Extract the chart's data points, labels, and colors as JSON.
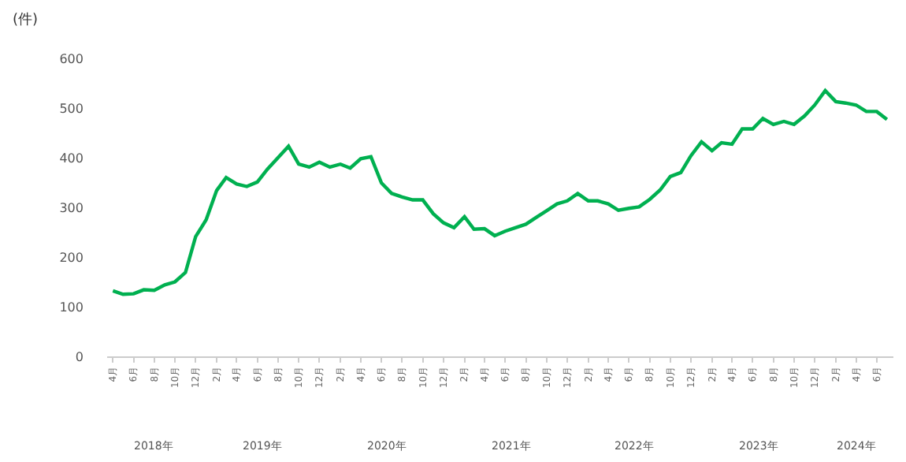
{
  "chart_data": {
    "type": "line",
    "ylabel": "(件)",
    "x": [
      "2018-04",
      "2018-05",
      "2018-06",
      "2018-07",
      "2018-08",
      "2018-09",
      "2018-10",
      "2018-11",
      "2018-12",
      "2019-01",
      "2019-02",
      "2019-03",
      "2019-04",
      "2019-05",
      "2019-06",
      "2019-07",
      "2019-08",
      "2019-09",
      "2019-10",
      "2019-11",
      "2019-12",
      "2020-01",
      "2020-02",
      "2020-03",
      "2020-04",
      "2020-05",
      "2020-06",
      "2020-07",
      "2020-08",
      "2020-09",
      "2020-10",
      "2020-11",
      "2020-12",
      "2021-01",
      "2021-02",
      "2021-03",
      "2021-04",
      "2021-05",
      "2021-06",
      "2021-07",
      "2021-08",
      "2021-09",
      "2021-10",
      "2021-11",
      "2021-12",
      "2022-01",
      "2022-02",
      "2022-03",
      "2022-04",
      "2022-05",
      "2022-06",
      "2022-07",
      "2022-08",
      "2022-09",
      "2022-10",
      "2022-11",
      "2022-12",
      "2023-01",
      "2023-02",
      "2023-03",
      "2023-04",
      "2023-05",
      "2023-06",
      "2023-07",
      "2023-08",
      "2023-09",
      "2023-10",
      "2023-11",
      "2023-12",
      "2024-01",
      "2024-02",
      "2024-03",
      "2024-04",
      "2024-05",
      "2024-06",
      "2024-07"
    ],
    "series": [
      {
        "color": "#00b050",
        "values": [
          132,
          125,
          126,
          134,
          133,
          144,
          150,
          169,
          241,
          275,
          334,
          360,
          347,
          342,
          351,
          377,
          400,
          423,
          387,
          381,
          391,
          381,
          387,
          379,
          398,
          402,
          349,
          328,
          321,
          315,
          315,
          287,
          269,
          259,
          281,
          256,
          257,
          243,
          252,
          259,
          266,
          280,
          293,
          307,
          313,
          328,
          313,
          313,
          307,
          294,
          298,
          301,
          316,
          335,
          362,
          370,
          404,
          432,
          414,
          430,
          427,
          458,
          458,
          479,
          467,
          473,
          467,
          484,
          506,
          535,
          513,
          510,
          506,
          493,
          493,
          477
        ]
      }
    ],
    "ylim": [
      0,
      600
    ],
    "yticks": [
      0,
      100,
      200,
      300,
      400,
      500,
      600
    ],
    "xlim": [
      "2018-03-15",
      "2024-07-20"
    ],
    "xticks": [
      {
        "value": "2018-04",
        "label": "4月"
      },
      {
        "value": "2018-06",
        "label": "6月"
      },
      {
        "value": "2018-08",
        "label": "8月"
      },
      {
        "value": "2018-10",
        "label": "10月"
      },
      {
        "value": "2018-12",
        "label": "12月"
      },
      {
        "value": "2019-02",
        "label": "2月"
      },
      {
        "value": "2019-04",
        "label": "4月"
      },
      {
        "value": "2019-06",
        "label": "6月"
      },
      {
        "value": "2019-08",
        "label": "8月"
      },
      {
        "value": "2019-10",
        "label": "10月"
      },
      {
        "value": "2019-12",
        "label": "12月"
      },
      {
        "value": "2020-02",
        "label": "2月"
      },
      {
        "value": "2020-04",
        "label": "4月"
      },
      {
        "value": "2020-06",
        "label": "6月"
      },
      {
        "value": "2020-08",
        "label": "8月"
      },
      {
        "value": "2020-10",
        "label": "10月"
      },
      {
        "value": "2020-12",
        "label": "12月"
      },
      {
        "value": "2021-02",
        "label": "2月"
      },
      {
        "value": "2021-04",
        "label": "4月"
      },
      {
        "value": "2021-06",
        "label": "6月"
      },
      {
        "value": "2021-08",
        "label": "8月"
      },
      {
        "value": "2021-10",
        "label": "10月"
      },
      {
        "value": "2021-12",
        "label": "12月"
      },
      {
        "value": "2022-02",
        "label": "2月"
      },
      {
        "value": "2022-04",
        "label": "4月"
      },
      {
        "value": "2022-06",
        "label": "6月"
      },
      {
        "value": "2022-08",
        "label": "8月"
      },
      {
        "value": "2022-10",
        "label": "10月"
      },
      {
        "value": "2022-12",
        "label": "12月"
      },
      {
        "value": "2023-02",
        "label": "2月"
      },
      {
        "value": "2023-04",
        "label": "4月"
      },
      {
        "value": "2023-06",
        "label": "6月"
      },
      {
        "value": "2023-08",
        "label": "8月"
      },
      {
        "value": "2023-10",
        "label": "10月"
      },
      {
        "value": "2023-12",
        "label": "12月"
      },
      {
        "value": "2024-02",
        "label": "2月"
      },
      {
        "value": "2024-04",
        "label": "4月"
      },
      {
        "value": "2024-06",
        "label": "6月"
      }
    ],
    "annotations": [
      "2018年",
      "2019年",
      "2020年",
      "2021年",
      "2022年",
      "2023年",
      "2024年"
    ],
    "marker": "none",
    "line_style": "solid"
  }
}
